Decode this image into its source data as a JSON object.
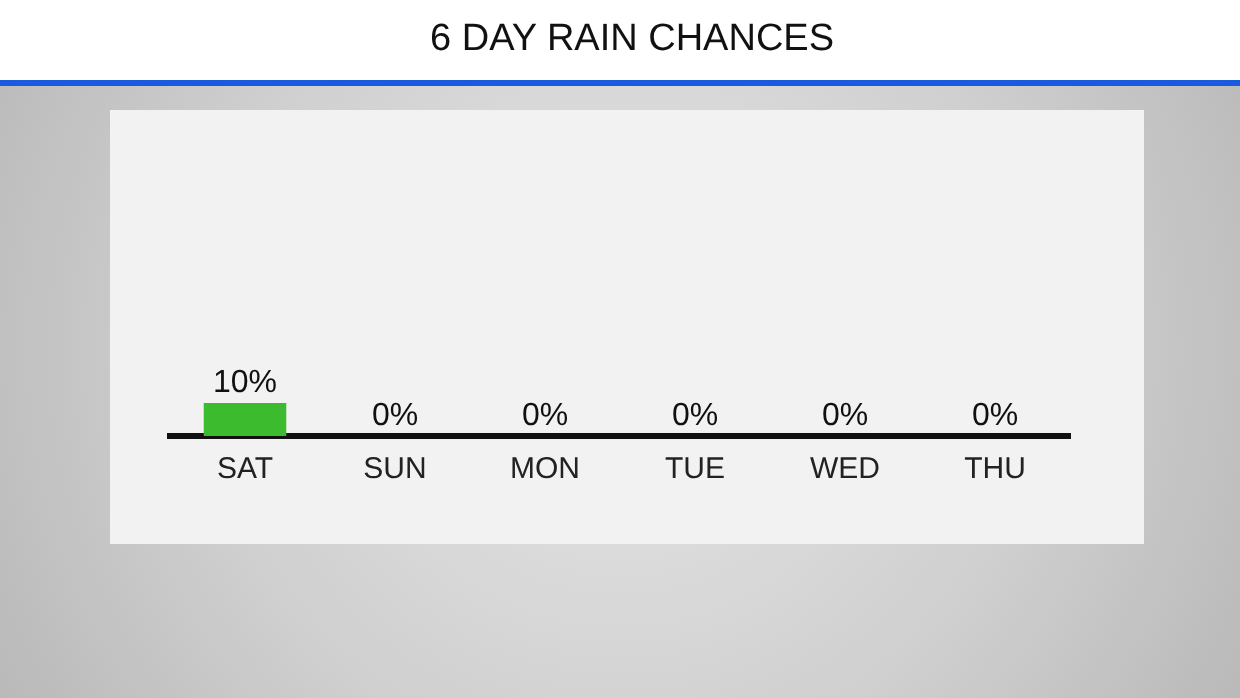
{
  "chart_data": {
    "type": "bar",
    "title": "6 DAY RAIN CHANCES",
    "categories": [
      "SAT",
      "SUN",
      "MON",
      "TUE",
      "WED",
      "THU"
    ],
    "values": [
      10,
      0,
      0,
      0,
      0,
      0
    ],
    "value_labels": [
      "10%",
      "0%",
      "0%",
      "0%",
      "0%",
      "0%"
    ],
    "color": "#3dbb2f",
    "grid": false,
    "legend": false
  }
}
